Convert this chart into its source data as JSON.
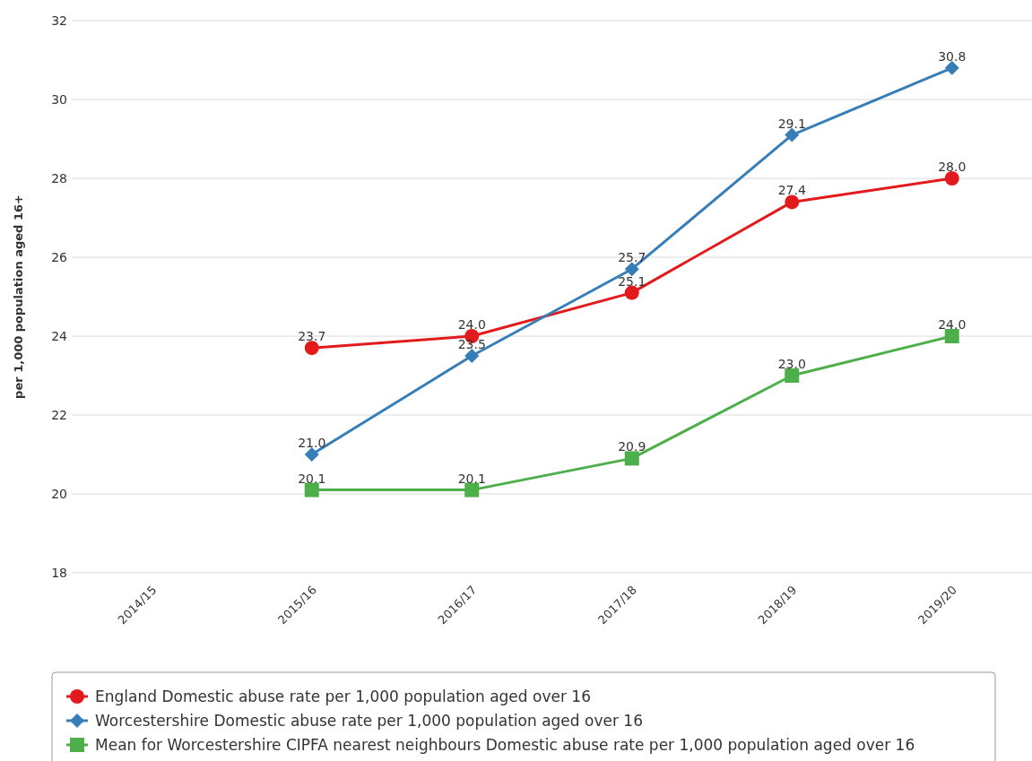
{
  "chart_data": {
    "type": "line",
    "ylabel": "per 1,000 population aged 16+",
    "categories": [
      "2014/15",
      "2015/16",
      "2016/17",
      "2017/18",
      "2018/19",
      "2019/20"
    ],
    "series": [
      {
        "name": "England Domestic abuse rate per 1,000 population aged over 16",
        "color": "#e31a1c",
        "marker": "circle",
        "values": [
          null,
          23.7,
          24.0,
          25.1,
          27.4,
          28.0
        ],
        "value_labels": [
          null,
          "23.7",
          "24.0",
          "25.1",
          "27.4",
          "28.0"
        ]
      },
      {
        "name": "Worcestershire Domestic abuse rate per 1,000 population aged over 16",
        "color": "#377eb8",
        "marker": "diamond",
        "values": [
          null,
          21.0,
          23.5,
          25.7,
          29.1,
          30.8
        ],
        "value_labels": [
          null,
          "21.0",
          "23.5",
          "25.7",
          "29.1",
          "30.8"
        ]
      },
      {
        "name": "Mean for Worcestershire CIPFA nearest neighbours Domestic abuse rate per 1,000 population aged over 16",
        "color": "#4daf4a",
        "marker": "square",
        "values": [
          null,
          20.1,
          20.1,
          20.9,
          23.0,
          24.0
        ],
        "value_labels": [
          null,
          "20.1",
          "20.1",
          "20.9",
          "23.0",
          "24.0"
        ]
      }
    ],
    "ylim": [
      18,
      32
    ],
    "yticks": [
      18,
      20,
      22,
      24,
      26,
      28,
      30,
      32
    ],
    "grid": "y",
    "legend": "bottom",
    "line_style": "solid"
  }
}
